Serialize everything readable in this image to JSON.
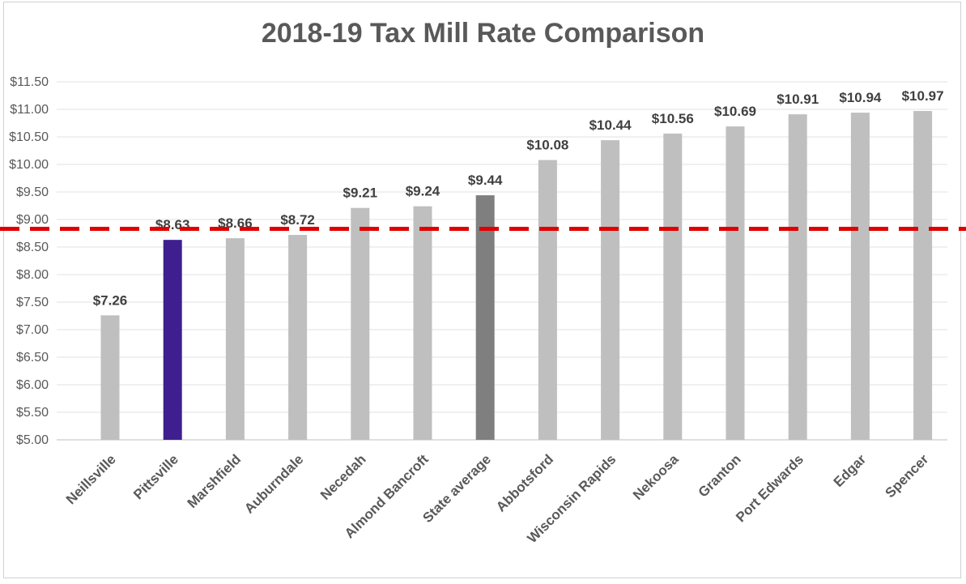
{
  "chart_data": {
    "type": "bar",
    "title": "2018-19 Tax Mill Rate Comparison",
    "xlabel": "",
    "ylabel": "",
    "ylim": [
      5.0,
      11.5
    ],
    "ytick_step": 0.5,
    "ytick_labels": [
      "$5.00",
      "$5.50",
      "$6.00",
      "$6.50",
      "$7.00",
      "$7.50",
      "$8.00",
      "$8.50",
      "$9.00",
      "$9.50",
      "$10.00",
      "$10.50",
      "$11.00",
      "$11.50"
    ],
    "grid": true,
    "categories": [
      "Neillsville",
      "Pittsville",
      "Marshfield",
      "Auburndale",
      "Necedah",
      "Almond Bancroft",
      "State average",
      "Abbotsford",
      "Wisconsin Rapids",
      "Nekoosa",
      "Granton",
      "Port Edwards",
      "Edgar",
      "Spencer"
    ],
    "values": [
      7.26,
      8.63,
      8.66,
      8.72,
      9.21,
      9.24,
      9.44,
      10.08,
      10.44,
      10.56,
      10.69,
      10.91,
      10.94,
      10.97
    ],
    "data_labels": [
      "$7.26",
      "$8.63",
      "$8.66",
      "$8.72",
      "$9.21",
      "$9.24",
      "$9.44",
      "$10.08",
      "$10.44",
      "$10.56",
      "$10.69",
      "$10.91",
      "$10.94",
      "$10.97"
    ],
    "bar_colors": [
      "#bfbfbf",
      "#3f1f8f",
      "#bfbfbf",
      "#bfbfbf",
      "#bfbfbf",
      "#bfbfbf",
      "#7f7f7f",
      "#bfbfbf",
      "#bfbfbf",
      "#bfbfbf",
      "#bfbfbf",
      "#bfbfbf",
      "#bfbfbf",
      "#bfbfbf"
    ],
    "reference_line": {
      "value": 8.83,
      "color": "#e00000",
      "style": "dashed"
    }
  }
}
